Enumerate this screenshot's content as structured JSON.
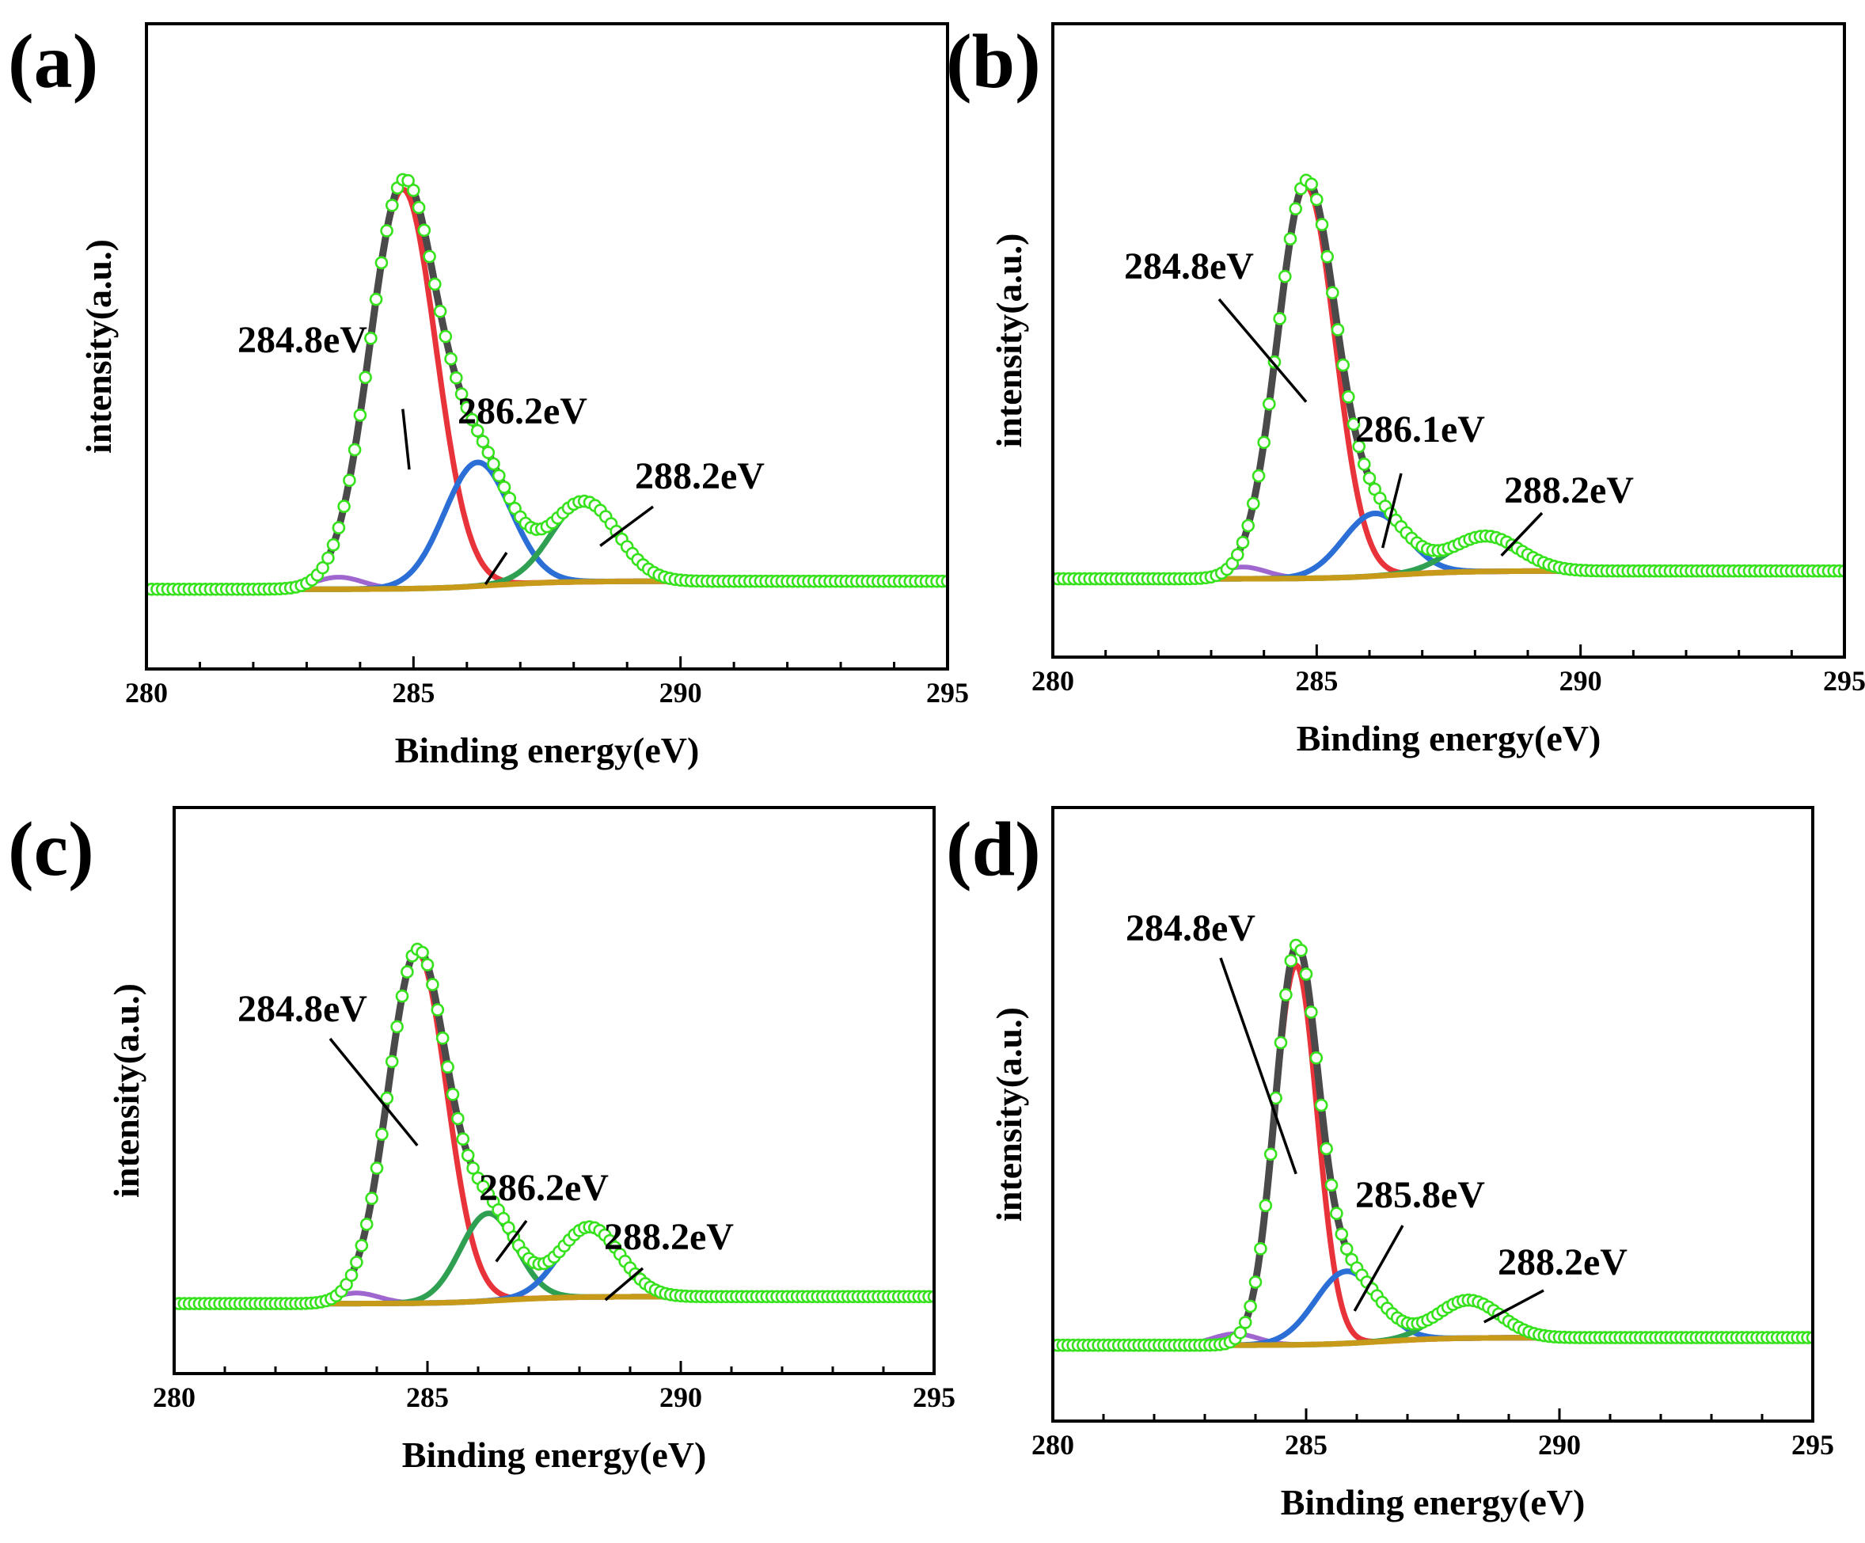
{
  "chart_data": [
    {
      "panel_label": "(a)",
      "type": "line",
      "xlabel": "Binding energy(eV)",
      "ylabel": "intensity(a.u.)",
      "xlim": [
        280,
        295
      ],
      "xticks": [
        280,
        285,
        290,
        295
      ],
      "y_ticks_shown": false,
      "grid": false,
      "baseline": 0.05,
      "peaks": [
        {
          "center": 284.8,
          "height": 1.0,
          "sigma": 0.62,
          "color": "#e8333a"
        },
        {
          "center": 286.2,
          "height": 0.31,
          "sigma": 0.62,
          "color": "#2b6fd6"
        },
        {
          "center": 288.2,
          "height": 0.2,
          "sigma": 0.62,
          "color": "#2fa052"
        }
      ],
      "colors": {
        "envelope": "#4a4a4a",
        "data_points": "#35e21b",
        "background": "#c79a1a",
        "background_low": "#a066d0"
      },
      "annotations": [
        {
          "text": "284.8eV",
          "peak": 284.8
        },
        {
          "text": "286.2eV",
          "peak": 286.2
        },
        {
          "text": "288.2eV",
          "peak": 288.2
        }
      ]
    },
    {
      "panel_label": "(b)",
      "type": "line",
      "xlabel": "Binding energy(eV)",
      "ylabel": "intensity(a.u.)",
      "xlim": [
        280,
        295
      ],
      "xticks": [
        280,
        285,
        290,
        295
      ],
      "y_ticks_shown": false,
      "grid": false,
      "baseline": 0.05,
      "peaks": [
        {
          "center": 284.8,
          "height": 1.0,
          "sigma": 0.55,
          "color": "#e8333a"
        },
        {
          "center": 286.1,
          "height": 0.16,
          "sigma": 0.6,
          "color": "#2b6fd6"
        },
        {
          "center": 288.2,
          "height": 0.09,
          "sigma": 0.65,
          "color": "#2fa052"
        }
      ],
      "colors": {
        "envelope": "#4a4a4a",
        "data_points": "#35e21b",
        "background": "#c79a1a",
        "background_low": "#a066d0"
      },
      "annotations": [
        {
          "text": "284.8eV",
          "peak": 284.8
        },
        {
          "text": "286.1eV",
          "peak": 286.1
        },
        {
          "text": "288.2eV",
          "peak": 288.2
        }
      ]
    },
    {
      "panel_label": "(c)",
      "type": "line",
      "xlabel": "Binding energy(eV)",
      "ylabel": "intensity(a.u.)",
      "xlim": [
        280,
        295
      ],
      "xticks": [
        280,
        285,
        290,
        295
      ],
      "y_ticks_shown": false,
      "grid": false,
      "baseline": 0.05,
      "peaks": [
        {
          "center": 284.8,
          "height": 1.0,
          "sigma": 0.58,
          "color": "#e8333a"
        },
        {
          "center": 286.2,
          "height": 0.25,
          "sigma": 0.55,
          "color": "#2fa052"
        },
        {
          "center": 288.2,
          "height": 0.2,
          "sigma": 0.6,
          "color": "#2b6fd6"
        }
      ],
      "colors": {
        "envelope": "#4a4a4a",
        "data_points": "#35e21b",
        "background": "#c79a1a",
        "background_low": "#a066d0"
      },
      "annotations": [
        {
          "text": "284.8eV",
          "peak": 284.8
        },
        {
          "text": "286.2eV",
          "peak": 286.2
        },
        {
          "text": "288.2eV",
          "peak": 288.2
        }
      ]
    },
    {
      "panel_label": "(d)",
      "type": "line",
      "xlabel": "Binding energy(eV)",
      "ylabel": "intensity(a.u.)",
      "xlim": [
        280,
        295
      ],
      "xticks": [
        280,
        285,
        290,
        295
      ],
      "y_ticks_shown": false,
      "grid": false,
      "baseline": 0.05,
      "peaks": [
        {
          "center": 284.8,
          "height": 1.0,
          "sigma": 0.42,
          "color": "#e8333a"
        },
        {
          "center": 285.8,
          "height": 0.19,
          "sigma": 0.62,
          "color": "#2b6fd6"
        },
        {
          "center": 288.2,
          "height": 0.1,
          "sigma": 0.62,
          "color": "#2fa052"
        }
      ],
      "colors": {
        "envelope": "#4a4a4a",
        "data_points": "#35e21b",
        "background": "#c79a1a",
        "background_low": "#a066d0"
      },
      "annotations": [
        {
          "text": "284.8eV",
          "peak": 284.8
        },
        {
          "text": "285.8eV",
          "peak": 285.8
        },
        {
          "text": "288.2eV",
          "peak": 288.2
        }
      ]
    }
  ]
}
